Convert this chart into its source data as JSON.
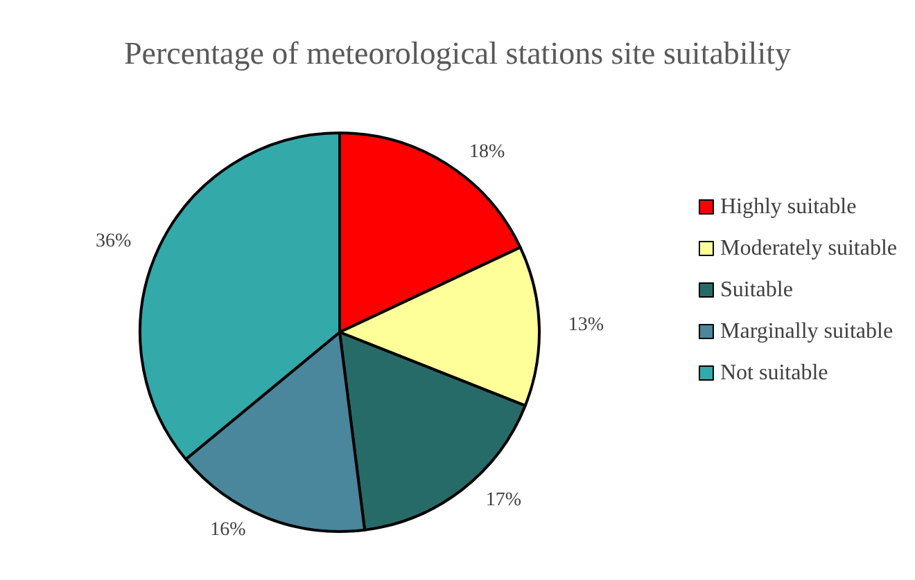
{
  "chart_data": {
    "type": "pie",
    "title": "Percentage of meteorological stations site suitability",
    "categories": [
      "Highly suitable",
      "Moderately suitable",
      "Suitable",
      "Marginally suitable",
      "Not suitable"
    ],
    "values": [
      18,
      13,
      17,
      16,
      36
    ],
    "colors": [
      "#ff0000",
      "#ffff99",
      "#276b68",
      "#4a869c",
      "#33a9a9"
    ],
    "value_labels": [
      "18%",
      "13%",
      "17%",
      "16%",
      "36%"
    ],
    "legend": "right"
  }
}
